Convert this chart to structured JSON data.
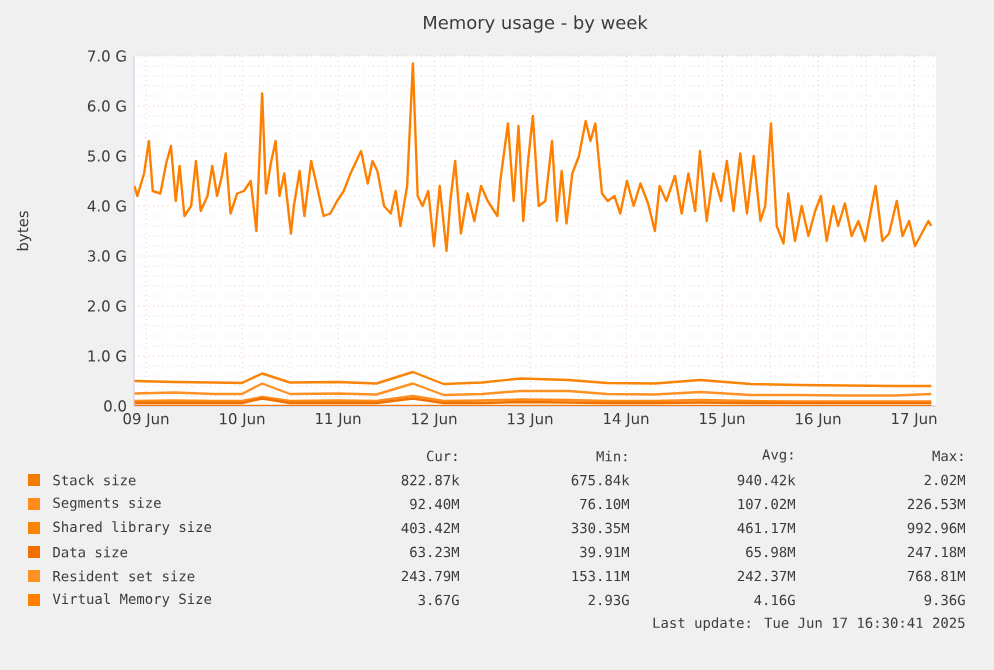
{
  "chart_data": {
    "type": "line",
    "title": "Memory usage - by week",
    "ylabel": "bytes",
    "legend": "bottom",
    "grid": true,
    "x": [
      "2025-06-09T09:07",
      "2025-06-09T19:12",
      "2025-06-10T04:48",
      "2025-06-10T12:00",
      "2025-06-10T17:02",
      "2025-06-11T00:00",
      "2025-06-11T12:00",
      "2025-06-11T21:36",
      "2025-06-12T06:43",
      "2025-06-12T14:24",
      "2025-06-13T00:00",
      "2025-06-13T09:36",
      "2025-06-13T21:36",
      "2025-06-14T07:12",
      "2025-06-14T19:12",
      "2025-06-15T06:29",
      "2025-06-15T19:12",
      "2025-06-16T07:12",
      "2025-06-16T19:12",
      "2025-06-17T07:12",
      "2025-06-17T16:19"
    ],
    "xlim": [
      "2025-06-09T09:00",
      "2025-06-17T17:30"
    ],
    "xticks": [
      {
        "value": "2025-06-09T12:00",
        "label": "09 Jun"
      },
      {
        "value": "2025-06-10T12:00",
        "label": "10 Jun"
      },
      {
        "value": "2025-06-11T12:00",
        "label": "11 Jun"
      },
      {
        "value": "2025-06-12T12:00",
        "label": "12 Jun"
      },
      {
        "value": "2025-06-13T12:00",
        "label": "13 Jun"
      },
      {
        "value": "2025-06-14T12:00",
        "label": "14 Jun"
      },
      {
        "value": "2025-06-15T12:00",
        "label": "15 Jun"
      },
      {
        "value": "2025-06-16T12:00",
        "label": "16 Jun"
      },
      {
        "value": "2025-06-17T12:00",
        "label": "17 Jun"
      }
    ],
    "ylim": [
      0,
      7
    ],
    "yticks": [
      {
        "value": 0,
        "label": "0.0"
      },
      {
        "value": 1,
        "label": "1.0 G"
      },
      {
        "value": 2,
        "label": "2.0 G"
      },
      {
        "value": 3,
        "label": "3.0 G"
      },
      {
        "value": 4,
        "label": "4.0 G"
      },
      {
        "value": 5,
        "label": "5.0 G"
      },
      {
        "value": 6,
        "label": "6.0 G"
      },
      {
        "value": 7,
        "label": "7.0 G"
      }
    ],
    "series": [
      {
        "name": "Stack size",
        "color": "#f57a00",
        "values": [
          0,
          0,
          0,
          0,
          0,
          0,
          0,
          0,
          0,
          0,
          0,
          0,
          0,
          0,
          0,
          0,
          0,
          0,
          0,
          0,
          0
        ]
      },
      {
        "name": "Segments size",
        "color": "#ff8c1a",
        "values": [
          0.1,
          0.11,
          0.1,
          0.1,
          0.18,
          0.1,
          0.11,
          0.1,
          0.2,
          0.1,
          0.11,
          0.13,
          0.12,
          0.1,
          0.1,
          0.12,
          0.1,
          0.09,
          0.09,
          0.09,
          0.09
        ]
      },
      {
        "name": "Shared library size",
        "color": "#fa8405",
        "values": [
          0.5,
          0.48,
          0.47,
          0.46,
          0.65,
          0.47,
          0.48,
          0.45,
          0.68,
          0.44,
          0.47,
          0.55,
          0.52,
          0.46,
          0.45,
          0.52,
          0.44,
          0.42,
          0.41,
          0.4,
          0.4
        ]
      },
      {
        "name": "Data size",
        "color": "#f07000",
        "values": [
          0.06,
          0.06,
          0.06,
          0.06,
          0.15,
          0.06,
          0.06,
          0.06,
          0.15,
          0.06,
          0.06,
          0.08,
          0.07,
          0.06,
          0.06,
          0.07,
          0.06,
          0.06,
          0.06,
          0.06,
          0.06
        ]
      },
      {
        "name": "Resident set size",
        "color": "#ff9226",
        "values": [
          0.25,
          0.27,
          0.24,
          0.24,
          0.45,
          0.24,
          0.25,
          0.23,
          0.45,
          0.22,
          0.24,
          0.3,
          0.3,
          0.24,
          0.23,
          0.28,
          0.22,
          0.22,
          0.21,
          0.21,
          0.24
        ]
      },
      {
        "name": "Virtual Memory Size",
        "color": "#ff8000",
        "x": [
          "2025-06-09T09:07",
          "2025-06-09T09:50",
          "2025-06-09T11:31",
          "2025-06-09T12:43",
          "2025-06-09T13:41",
          "2025-06-09T15:36",
          "2025-06-09T17:02",
          "2025-06-09T18:14",
          "2025-06-09T19:26",
          "2025-06-09T20:24",
          "2025-06-09T21:36",
          "2025-06-09T23:17",
          "2025-06-10T00:29",
          "2025-06-10T01:41",
          "2025-06-10T03:22",
          "2025-06-10T04:34",
          "2025-06-10T05:46",
          "2025-06-10T06:58",
          "2025-06-10T07:55",
          "2025-06-10T09:07",
          "2025-06-10T10:48",
          "2025-06-10T12:29",
          "2025-06-10T14:10",
          "2025-06-10T15:36",
          "2025-06-10T17:02",
          "2025-06-10T18:00",
          "2025-06-10T19:12",
          "2025-06-10T20:24",
          "2025-06-10T21:22",
          "2025-06-10T22:34",
          "2025-06-11T00:14",
          "2025-06-11T00:58",
          "2025-06-11T02:24",
          "2025-06-11T03:36",
          "2025-06-11T05:17",
          "2025-06-11T06:43",
          "2025-06-11T08:24",
          "2025-06-11T10:05",
          "2025-06-11T11:46",
          "2025-06-11T13:26",
          "2025-06-11T15:07",
          "2025-06-11T17:46",
          "2025-06-11T19:26",
          "2025-06-11T20:38",
          "2025-06-11T21:50",
          "2025-06-11T23:31",
          "2025-06-12T01:12",
          "2025-06-12T02:24",
          "2025-06-12T03:36",
          "2025-06-12T05:17",
          "2025-06-12T06:43",
          "2025-06-12T07:55",
          "2025-06-12T09:07",
          "2025-06-12T10:34",
          "2025-06-12T12:00",
          "2025-06-12T13:26",
          "2025-06-12T15:07",
          "2025-06-12T16:05",
          "2025-06-12T17:17",
          "2025-06-12T18:43",
          "2025-06-12T20:24",
          "2025-06-12T22:05",
          "2025-06-12T23:46",
          "2025-06-13T01:26",
          "2025-06-13T03:50",
          "2025-06-13T04:34",
          "2025-06-13T06:29",
          "2025-06-13T07:55",
          "2025-06-13T09:07",
          "2025-06-13T10:19",
          "2025-06-13T11:31",
          "2025-06-13T12:43",
          "2025-06-13T14:10",
          "2025-06-13T15:50",
          "2025-06-13T17:31",
          "2025-06-13T18:43",
          "2025-06-13T19:55",
          "2025-06-13T21:07",
          "2025-06-13T22:34",
          "2025-06-14T00:14",
          "2025-06-14T01:55",
          "2025-06-14T03:07",
          "2025-06-14T04:19",
          "2025-06-14T06:00",
          "2025-06-14T07:26",
          "2025-06-14T09:07",
          "2025-06-14T10:34",
          "2025-06-14T12:14",
          "2025-06-14T13:55",
          "2025-06-14T15:36",
          "2025-06-14T17:31",
          "2025-06-14T19:12",
          "2025-06-14T20:24",
          "2025-06-14T22:05",
          "2025-06-15T00:14",
          "2025-06-15T01:55",
          "2025-06-15T03:36",
          "2025-06-15T05:17",
          "2025-06-15T06:29",
          "2025-06-15T08:10",
          "2025-06-15T09:50",
          "2025-06-15T11:46",
          "2025-06-15T13:12",
          "2025-06-15T14:53",
          "2025-06-15T16:34",
          "2025-06-15T18:14",
          "2025-06-15T19:55",
          "2025-06-15T21:36",
          "2025-06-15T22:48",
          "2025-06-16T00:14",
          "2025-06-16T01:41",
          "2025-06-16T03:22",
          "2025-06-16T04:34",
          "2025-06-16T06:14",
          "2025-06-16T07:55",
          "2025-06-16T09:36",
          "2025-06-16T11:17",
          "2025-06-16T12:43",
          "2025-06-16T14:10",
          "2025-06-16T15:50",
          "2025-06-16T17:02",
          "2025-06-16T18:43",
          "2025-06-16T20:24",
          "2025-06-16T22:05",
          "2025-06-16T23:46",
          "2025-06-17T00:58",
          "2025-06-17T02:24",
          "2025-06-17T04:05",
          "2025-06-17T05:46",
          "2025-06-17T07:41",
          "2025-06-17T09:07",
          "2025-06-17T10:48",
          "2025-06-17T12:14",
          "2025-06-17T13:55",
          "2025-06-17T15:36",
          "2025-06-17T16:19"
        ],
        "values": [
          4.4,
          4.2,
          4.65,
          5.3,
          4.3,
          4.25,
          4.85,
          5.2,
          4.1,
          4.8,
          3.8,
          4.0,
          4.9,
          3.9,
          4.2,
          4.8,
          4.2,
          4.6,
          5.05,
          3.85,
          4.25,
          4.3,
          4.5,
          3.5,
          6.25,
          4.25,
          4.85,
          5.3,
          4.2,
          4.65,
          3.45,
          4.0,
          4.7,
          3.8,
          4.9,
          4.4,
          3.8,
          3.85,
          4.1,
          4.3,
          4.65,
          5.1,
          4.45,
          4.9,
          4.7,
          4.0,
          3.85,
          4.3,
          3.6,
          4.4,
          6.85,
          4.2,
          4.0,
          4.3,
          3.2,
          4.4,
          3.1,
          4.1,
          4.9,
          3.45,
          4.25,
          3.7,
          4.4,
          4.1,
          3.8,
          4.5,
          5.65,
          4.1,
          5.6,
          3.7,
          4.9,
          5.8,
          4.0,
          4.1,
          5.3,
          3.7,
          4.7,
          3.65,
          4.65,
          5.0,
          5.7,
          5.3,
          5.65,
          4.25,
          4.1,
          4.2,
          3.85,
          4.5,
          4.0,
          4.45,
          4.05,
          3.5,
          4.4,
          4.1,
          4.6,
          3.85,
          4.65,
          3.9,
          5.1,
          3.7,
          4.65,
          4.1,
          4.9,
          3.9,
          5.05,
          3.85,
          5.0,
          3.7,
          4.0,
          5.65,
          3.6,
          3.25,
          4.25,
          3.3,
          4.0,
          3.4,
          3.9,
          4.2,
          3.3,
          4.0,
          3.6,
          4.05,
          3.4,
          3.7,
          3.3,
          3.8,
          4.4,
          3.3,
          3.45,
          4.1,
          3.4,
          3.7,
          3.2,
          3.45,
          3.7,
          3.6
        ]
      }
    ],
    "annotations": [
      "Cur:",
      "Min:",
      "Avg:",
      "Max:",
      "822.87k",
      "675.84k",
      "940.42k",
      "2.02M",
      "92.40M",
      "76.10M",
      "107.02M",
      "226.53M",
      "403.42M",
      "330.35M",
      "461.17M",
      "992.96M",
      "63.23M",
      "39.91M",
      "65.98M",
      "247.18M",
      "243.79M",
      "153.11M",
      "242.37M",
      "768.81M",
      "3.67G",
      "2.93G",
      "4.16G",
      "9.36G",
      "Last update: Tue Jun 17 16:30:41 2025"
    ]
  }
}
